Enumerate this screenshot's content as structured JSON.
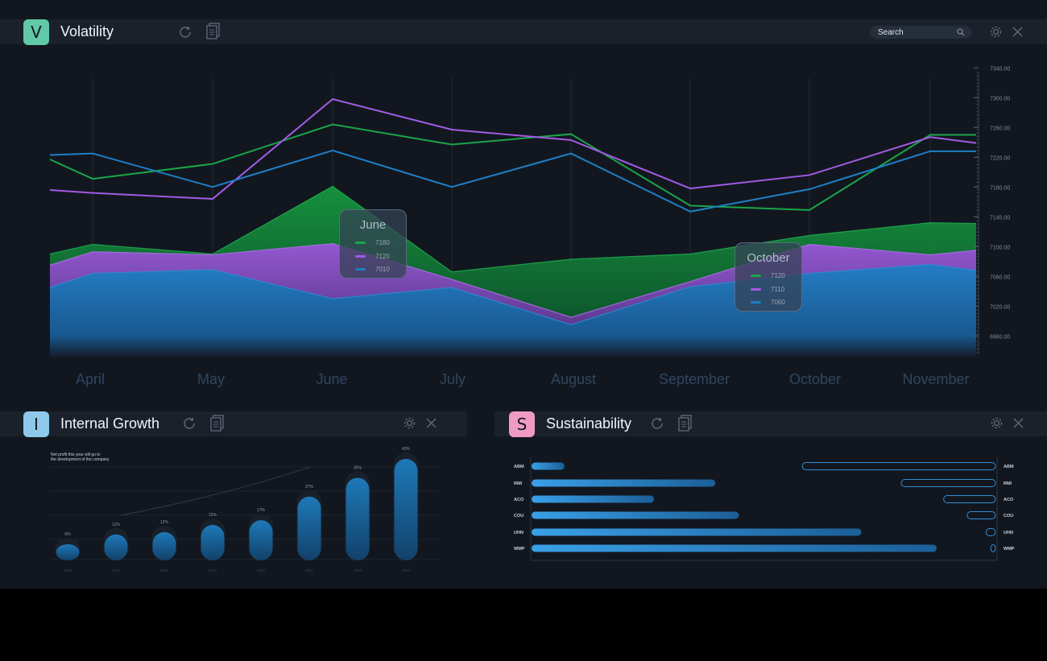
{
  "colors": {
    "green": "#1aa648",
    "purple": "#a25ae3",
    "blue": "#1d7fc6",
    "bg": "#12171f",
    "bar": "#1a212b"
  },
  "volatility": {
    "badge": "V",
    "badge_color": "#62c9a8",
    "title": "Volatility",
    "search_placeholder": "Search",
    "icons": [
      "refresh-icon",
      "document-icon",
      "search-icon",
      "gear-icon",
      "close-icon"
    ],
    "tooltips": [
      {
        "title": "June",
        "values": [
          "7180",
          "7120",
          "7010"
        ]
      },
      {
        "title": "October",
        "values": [
          "7120",
          "7110",
          "7060"
        ]
      }
    ]
  },
  "internal_growth": {
    "badge": "I",
    "badge_color": "#8ec9ec",
    "title": "Internal Growth",
    "note": "Net profit this year will go to\nthe development of the company"
  },
  "sustainability": {
    "badge": "S",
    "badge_color": "#ef9ac4",
    "title": "Sustainability"
  },
  "chart_data": [
    {
      "type": "line",
      "title": "Volatility",
      "x": [
        "",
        "April",
        "May",
        "June",
        "July",
        "August",
        "September",
        "October",
        "November",
        ""
      ],
      "xticks": [
        "April",
        "May",
        "June",
        "July",
        "August",
        "September",
        "October",
        "November"
      ],
      "yticks": [
        "7340.00",
        "7300.00",
        "7260.00",
        "7220.00",
        "7180.00",
        "7140.00",
        "7100.00",
        "7060.00",
        "7020.00",
        "6980.00"
      ],
      "ylim": [
        6950,
        7350
      ],
      "series": [
        {
          "values": [
            7217,
            7191,
            7211,
            7264,
            7237,
            7251,
            7155,
            7149,
            7250,
            7250
          ]
        },
        {
          "values": [
            7176,
            7172,
            7164,
            7298,
            7257,
            7243,
            7178,
            7196,
            7247,
            7239
          ]
        },
        {
          "values": [
            7223,
            7225,
            7180,
            7229,
            7180,
            7225,
            7147,
            7177,
            7228,
            7228
          ]
        }
      ],
      "areas": [
        {
          "values": [
            7090,
            7103,
            7090,
            7181,
            7066,
            7083,
            7090,
            7115,
            7132,
            7131
          ]
        },
        {
          "values": [
            7075,
            7093,
            7089,
            7104,
            7056,
            7005,
            7053,
            7103,
            7089,
            7095
          ]
        },
        {
          "values": [
            7045,
            7064,
            7069,
            7030,
            7045,
            6995,
            7046,
            7064,
            7076,
            7068
          ]
        }
      ]
    },
    {
      "type": "bar",
      "title": "Internal Growth",
      "categories": [
        "2016",
        "2017",
        "2018",
        "2019",
        "2020",
        "2021",
        "2022",
        "2023"
      ],
      "values": [
        6,
        11,
        12,
        15,
        17,
        27,
        35,
        43
      ],
      "labels": [
        "6%",
        "11%",
        "12%",
        "15%",
        "17%",
        "27%",
        "35%",
        "43%"
      ]
    },
    {
      "type": "bar",
      "title": "Sustainability",
      "categories": [
        "ABM",
        "RMI",
        "ACO",
        "COU",
        "UHN",
        "WMP"
      ],
      "values": [
        7,
        39,
        26,
        44,
        70,
        86
      ],
      "right_values": [
        41,
        20,
        11,
        6,
        2,
        1
      ]
    }
  ]
}
